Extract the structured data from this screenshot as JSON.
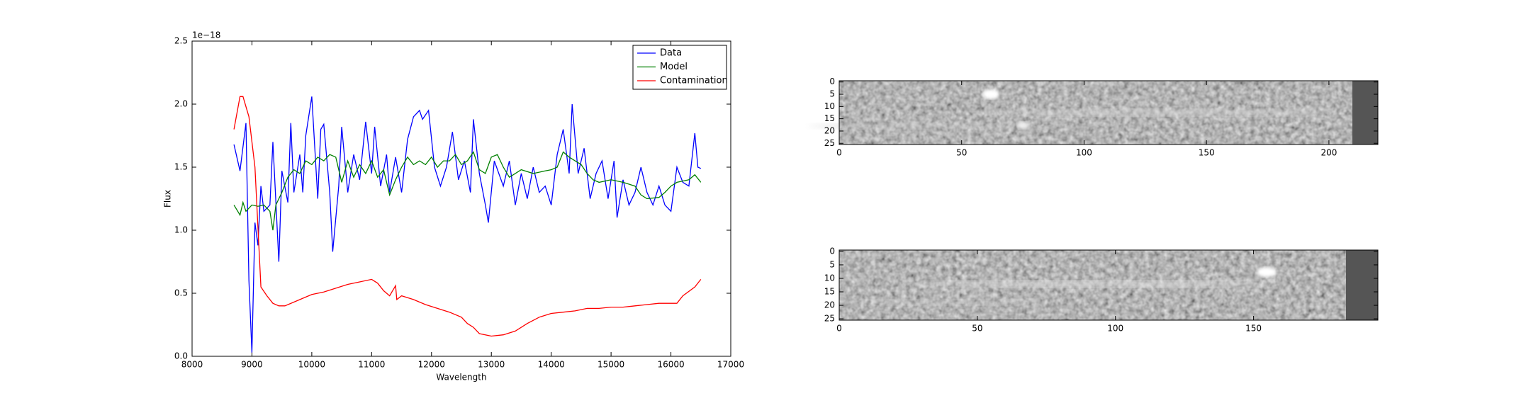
{
  "chart_data": [
    {
      "type": "line",
      "xlabel": "Wavelength",
      "ylabel": "Flux",
      "y_offset_label": "1e−18",
      "xlim": [
        8000,
        17000
      ],
      "xticks": [
        8000,
        9000,
        10000,
        11000,
        12000,
        13000,
        14000,
        15000,
        16000,
        17000
      ],
      "ylim": [
        0,
        2.5
      ],
      "yticks": [
        {
          "value": 0,
          "label": "0.0"
        },
        0.5,
        {
          "value": 1,
          "label": "1.0"
        },
        1.5,
        {
          "value": 2,
          "label": "2.0"
        },
        2.5
      ],
      "legend": "upper right",
      "series": [
        {
          "name": "Data",
          "color": "#0000ff",
          "x": [
            8700,
            8800,
            8900,
            8950,
            9000,
            9050,
            9100,
            9150,
            9200,
            9300,
            9350,
            9450,
            9500,
            9600,
            9650,
            9700,
            9800,
            9850,
            9900,
            10000,
            10100,
            10150,
            10200,
            10300,
            10350,
            10450,
            10500,
            10600,
            10700,
            10800,
            10900,
            11000,
            11050,
            11150,
            11250,
            11300,
            11400,
            11500,
            11600,
            11700,
            11800,
            11850,
            11950,
            12050,
            12150,
            12250,
            12350,
            12450,
            12550,
            12650,
            12700,
            12800,
            12900,
            12950,
            13050,
            13200,
            13300,
            13400,
            13500,
            13600,
            13700,
            13800,
            13900,
            14000,
            14100,
            14200,
            14300,
            14350,
            14450,
            14550,
            14650,
            14750,
            14850,
            14950,
            15050,
            15100,
            15200,
            15300,
            15400,
            15500,
            15600,
            15700,
            15800,
            15900,
            16000,
            16100,
            16200,
            16300,
            16400,
            16450,
            16500
          ],
          "values": [
            1.68,
            1.47,
            1.85,
            0.6,
            0.03,
            1.06,
            0.88,
            1.35,
            1.15,
            1.2,
            1.7,
            0.75,
            1.47,
            1.22,
            1.85,
            1.3,
            1.6,
            1.3,
            1.75,
            2.06,
            1.25,
            1.8,
            1.84,
            1.3,
            0.83,
            1.35,
            1.82,
            1.3,
            1.6,
            1.4,
            1.86,
            1.45,
            1.82,
            1.35,
            1.6,
            1.3,
            1.58,
            1.3,
            1.72,
            1.9,
            1.95,
            1.88,
            1.95,
            1.5,
            1.35,
            1.5,
            1.78,
            1.4,
            1.55,
            1.3,
            1.88,
            1.45,
            1.2,
            1.06,
            1.55,
            1.35,
            1.55,
            1.2,
            1.45,
            1.25,
            1.5,
            1.3,
            1.35,
            1.2,
            1.6,
            1.8,
            1.45,
            2.0,
            1.45,
            1.65,
            1.25,
            1.45,
            1.55,
            1.25,
            1.55,
            1.1,
            1.4,
            1.2,
            1.3,
            1.5,
            1.3,
            1.2,
            1.35,
            1.2,
            1.15,
            1.5,
            1.38,
            1.35,
            1.77,
            1.5,
            1.49
          ]
        },
        {
          "name": "Model",
          "color": "#008000",
          "x": [
            8700,
            8800,
            8850,
            8900,
            9000,
            9100,
            9200,
            9300,
            9350,
            9400,
            9500,
            9600,
            9700,
            9800,
            9900,
            10000,
            10100,
            10200,
            10300,
            10400,
            10500,
            10600,
            10700,
            10800,
            10900,
            11000,
            11100,
            11200,
            11300,
            11400,
            11500,
            11600,
            11700,
            11800,
            11900,
            12000,
            12100,
            12200,
            12300,
            12400,
            12500,
            12600,
            12700,
            12800,
            12900,
            13000,
            13100,
            13200,
            13300,
            13400,
            13500,
            13700,
            13900,
            14000,
            14100,
            14200,
            14300,
            14400,
            14500,
            14600,
            14700,
            14800,
            15000,
            15200,
            15400,
            15500,
            15600,
            15800,
            15900,
            16000,
            16100,
            16300,
            16400,
            16500
          ],
          "values": [
            1.2,
            1.12,
            1.22,
            1.15,
            1.2,
            1.19,
            1.2,
            1.15,
            1.0,
            1.2,
            1.3,
            1.42,
            1.48,
            1.45,
            1.55,
            1.52,
            1.58,
            1.55,
            1.6,
            1.58,
            1.38,
            1.55,
            1.42,
            1.52,
            1.45,
            1.55,
            1.42,
            1.48,
            1.28,
            1.4,
            1.5,
            1.58,
            1.52,
            1.55,
            1.52,
            1.58,
            1.5,
            1.55,
            1.55,
            1.6,
            1.52,
            1.55,
            1.62,
            1.48,
            1.45,
            1.58,
            1.6,
            1.5,
            1.42,
            1.45,
            1.48,
            1.45,
            1.47,
            1.48,
            1.5,
            1.62,
            1.58,
            1.55,
            1.52,
            1.45,
            1.4,
            1.38,
            1.4,
            1.38,
            1.35,
            1.28,
            1.25,
            1.26,
            1.3,
            1.35,
            1.38,
            1.4,
            1.44,
            1.38
          ]
        },
        {
          "name": "Contamination",
          "color": "#ff0000",
          "x": [
            8700,
            8800,
            8850,
            8950,
            9050,
            9150,
            9250,
            9350,
            9450,
            9550,
            9700,
            9850,
            10000,
            10200,
            10400,
            10600,
            10800,
            11000,
            11100,
            11200,
            11300,
            11400,
            11420,
            11500,
            11700,
            11900,
            12100,
            12300,
            12500,
            12600,
            12700,
            12800,
            13000,
            13200,
            13400,
            13600,
            13800,
            14000,
            14200,
            14400,
            14600,
            14800,
            15000,
            15200,
            15400,
            15600,
            15800,
            16000,
            16100,
            16200,
            16400,
            16500
          ],
          "values": [
            1.8,
            2.06,
            2.06,
            1.9,
            1.5,
            0.55,
            0.48,
            0.42,
            0.4,
            0.4,
            0.43,
            0.46,
            0.49,
            0.51,
            0.54,
            0.57,
            0.59,
            0.61,
            0.58,
            0.52,
            0.48,
            0.56,
            0.45,
            0.48,
            0.45,
            0.41,
            0.38,
            0.35,
            0.31,
            0.26,
            0.23,
            0.18,
            0.16,
            0.17,
            0.2,
            0.26,
            0.31,
            0.34,
            0.35,
            0.36,
            0.38,
            0.38,
            0.39,
            0.39,
            0.4,
            0.41,
            0.42,
            0.42,
            0.42,
            0.48,
            0.55,
            0.61
          ]
        }
      ]
    },
    {
      "type": "image",
      "xlim": [
        0,
        220
      ],
      "xticks": [
        0,
        50,
        100,
        150,
        200
      ],
      "ylim": [
        25.5,
        -0.5
      ],
      "yticks": [
        0,
        5,
        10,
        15,
        20,
        25
      ]
    },
    {
      "type": "image",
      "xlim": [
        0,
        195
      ],
      "xticks": [
        0,
        50,
        100,
        150
      ],
      "ylim": [
        25.5,
        -0.5
      ],
      "yticks": [
        0,
        5,
        10,
        15,
        20,
        25
      ]
    }
  ]
}
